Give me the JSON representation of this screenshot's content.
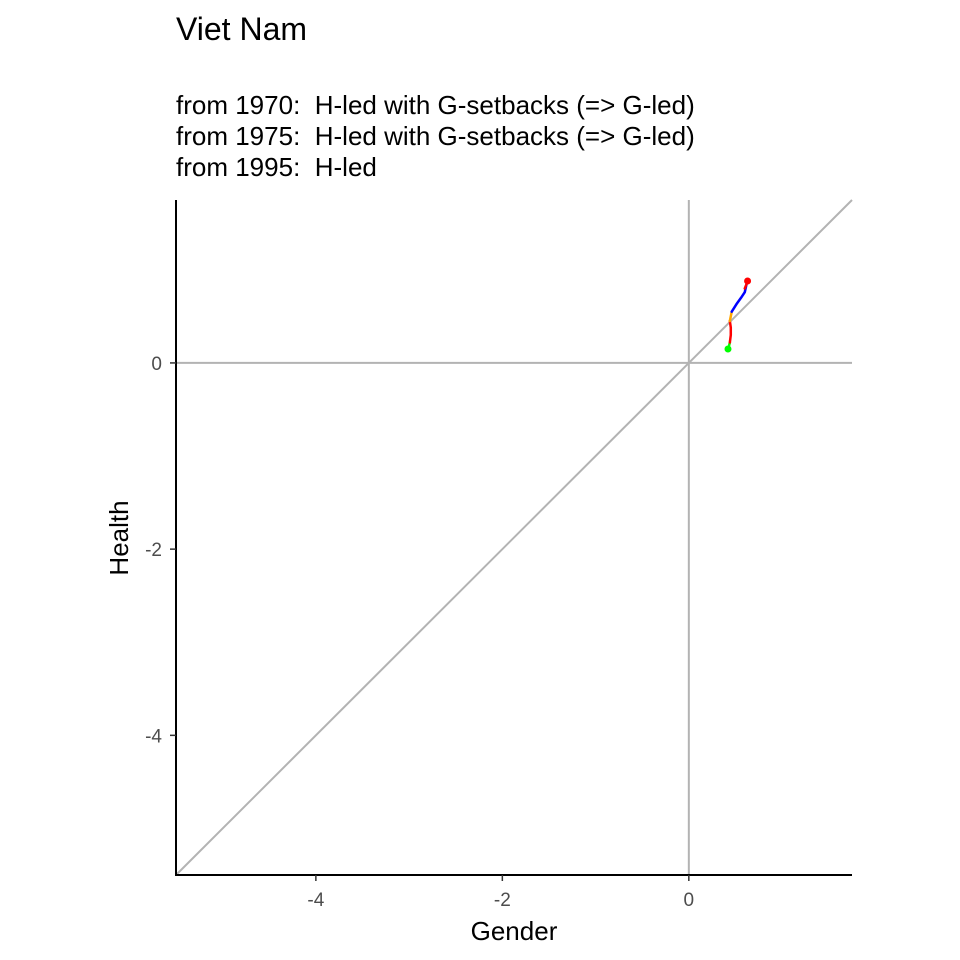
{
  "chart_data": {
    "type": "line",
    "title": "Viet Nam",
    "subtitle_lines": [
      "from 1970:  H-led with G-setbacks (=> G-led)",
      "from 1975:  H-led with G-setbacks (=> G-led)",
      "from 1995:  H-led"
    ],
    "xlabel": "Gender",
    "ylabel": "Health",
    "xlim": [
      -5.5,
      1.75
    ],
    "ylim": [
      -5.5,
      1.75
    ],
    "x_ticks": [
      -4,
      -2,
      0
    ],
    "y_ticks": [
      -4,
      -2,
      0
    ],
    "reference_lines": [
      "x = 0",
      "y = 0",
      "y = x"
    ],
    "reference_color": "#b3b3b3",
    "grid": false,
    "series": [
      {
        "color": "#00ff00",
        "x": [
          0.42,
          0.43,
          0.44
        ],
        "y": [
          0.15,
          0.18,
          0.22
        ]
      },
      {
        "color": "#ff0000",
        "x": [
          0.44,
          0.45,
          0.45,
          0.44
        ],
        "y": [
          0.22,
          0.3,
          0.38,
          0.45
        ]
      },
      {
        "color": "#ffa500",
        "x": [
          0.44,
          0.45,
          0.46
        ],
        "y": [
          0.45,
          0.5,
          0.55
        ]
      },
      {
        "color": "#0000ff",
        "x": [
          0.46,
          0.51,
          0.56,
          0.6,
          0.62
        ],
        "y": [
          0.55,
          0.63,
          0.7,
          0.76,
          0.85
        ]
      },
      {
        "color": "#ff0000",
        "x": [
          0.6,
          0.62,
          0.63
        ],
        "y": [
          0.8,
          0.85,
          0.88
        ]
      }
    ],
    "start_point": {
      "x": 0.42,
      "y": 0.15,
      "color": "#00ff00"
    },
    "end_point": {
      "x": 0.63,
      "y": 0.88,
      "color": "#ff0000"
    }
  }
}
